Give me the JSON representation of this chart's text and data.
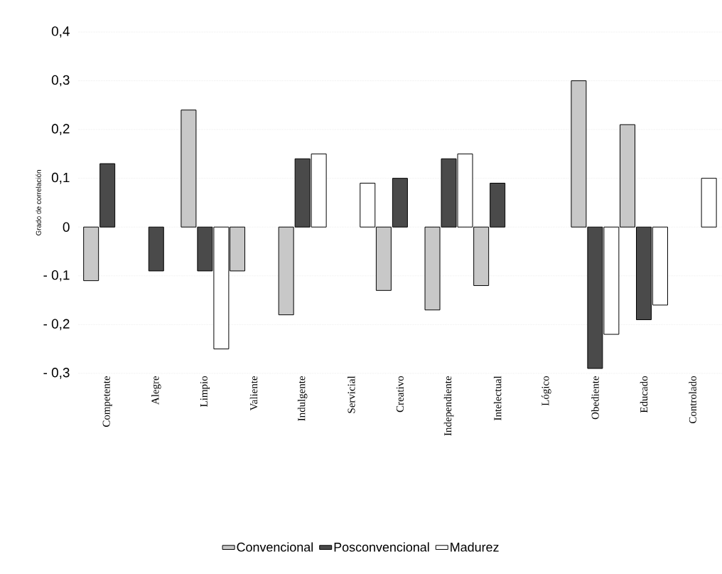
{
  "chart_data": {
    "type": "bar",
    "ylabel": "Grado de correlación",
    "categories": [
      "Competente",
      "Alegre",
      "Limpio",
      "Valiente",
      "Indulgente",
      "Servicial",
      "Creativo",
      "Independiente",
      "Intelectual",
      "Lógico",
      "Obediente",
      "Educado",
      "Controlado"
    ],
    "series": [
      {
        "name": "Convencional",
        "color": "#c8c8c8",
        "values": [
          -0.11,
          null,
          0.24,
          -0.09,
          -0.18,
          null,
          -0.13,
          -0.17,
          -0.12,
          null,
          0.3,
          0.21,
          null
        ]
      },
      {
        "name": "Posconvencional",
        "color": "#4a4a4a",
        "values": [
          0.13,
          -0.09,
          -0.09,
          null,
          0.14,
          null,
          0.1,
          0.14,
          0.09,
          null,
          -0.29,
          -0.19,
          null
        ]
      },
      {
        "name": "Madurez",
        "color": "#ffffff",
        "values": [
          null,
          null,
          -0.25,
          null,
          0.15,
          0.09,
          null,
          0.15,
          null,
          null,
          -0.22,
          -0.16,
          0.1
        ]
      }
    ],
    "ylim": [
      -0.3,
      0.4
    ],
    "yticks": [
      {
        "value": -0.3,
        "label": "- 0,3"
      },
      {
        "value": -0.2,
        "label": "- 0,2"
      },
      {
        "value": -0.1,
        "label": "- 0,1"
      },
      0,
      {
        "value": 0.1,
        "label": "0,1"
      },
      {
        "value": 0.2,
        "label": "0,2"
      },
      {
        "value": 0.3,
        "label": "0,3"
      },
      {
        "value": 0.4,
        "label": "0,4"
      }
    ],
    "grid": "y",
    "legend": "bottom"
  }
}
